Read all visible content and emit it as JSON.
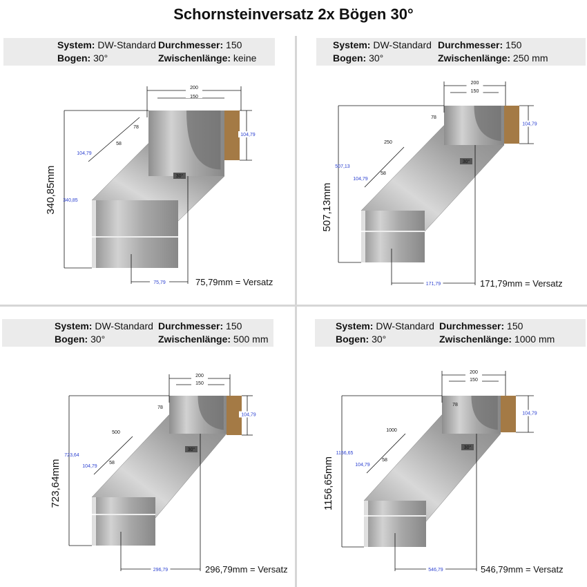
{
  "title": "Schornsteinversatz 2x Bögen 30°",
  "labels": {
    "system": "System:",
    "bogen": "Bogen:",
    "durchmesser": "Durchmesser:",
    "zwischen": "Zwischenlänge:"
  },
  "colors": {
    "pipe": "#a9a9a9",
    "insulation": "#a47a45",
    "dimension_blue": "#2a3fd0",
    "info_bg": "#ebebeb"
  },
  "quadrants": [
    {
      "system": "DW-Standard",
      "bogen": "30°",
      "durchmesser": "150",
      "zwischenlaenge": "keine",
      "height_label": "340,85mm",
      "height_small": "340,85",
      "width_outer": "200",
      "width_inner": "150",
      "insulation_height": "104,79",
      "offset_small": "75,79",
      "offset_label": "75,79mm = Versatz",
      "dim_78": "78",
      "dim_58": "58",
      "dim_diag": "104,79",
      "length": "",
      "angle": "30°"
    },
    {
      "system": "DW-Standard",
      "bogen": "30°",
      "durchmesser": "150",
      "zwischenlaenge": "250 mm",
      "height_label": "507,13mm",
      "height_small": "507,13",
      "width_outer": "200",
      "width_inner": "150",
      "insulation_height": "104,79",
      "offset_small": "171,79",
      "offset_label": "171,79mm = Versatz",
      "dim_78": "78",
      "dim_58": "58",
      "dim_diag": "104,79",
      "length": "250",
      "angle": "30°"
    },
    {
      "system": "DW-Standard",
      "bogen": "30°",
      "durchmesser": "150",
      "zwischenlaenge": "500 mm",
      "height_label": "723,64mm",
      "height_small": "723,64",
      "width_outer": "200",
      "width_inner": "150",
      "insulation_height": "104,79",
      "offset_small": "296,79",
      "offset_label": "296,79mm = Versatz",
      "dim_78": "78",
      "dim_58": "58",
      "dim_diag": "104,79",
      "length": "500",
      "angle": "30°"
    },
    {
      "system": "DW-Standard",
      "bogen": "30°",
      "durchmesser": "150",
      "zwischenlaenge": "1000 mm",
      "height_label": "1156,65mm",
      "height_small": "1156,65",
      "width_outer": "200",
      "width_inner": "150",
      "insulation_height": "104,79",
      "offset_small": "546,79",
      "offset_label": "546,79mm = Versatz",
      "dim_78": "78",
      "dim_58": "58",
      "dim_diag": "104,79",
      "length": "1000",
      "angle": "30°"
    }
  ]
}
